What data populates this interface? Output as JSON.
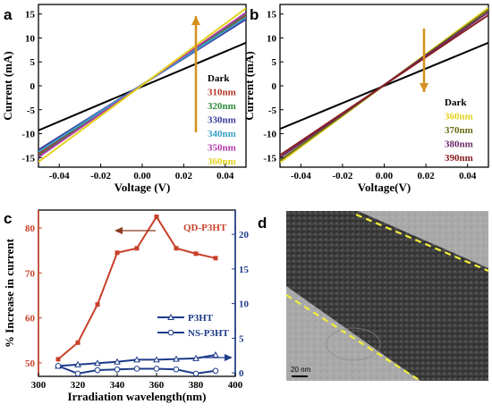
{
  "panel_letters": {
    "a": "a",
    "b": "b",
    "c": "c",
    "d": "d"
  },
  "colors": {
    "arrow": "#d4901c",
    "red": "#c8402a",
    "blue": "#1e3b8a",
    "dark": "#000000",
    "c310": "#b5332b",
    "c320": "#2e8b3a",
    "c330": "#3b3a9c",
    "c340": "#3aa0c8",
    "c350": "#b23aa8",
    "c360": "#e2d21c",
    "c370": "#6b6b16",
    "c380": "#6a2a6b",
    "c390": "#8a1e22"
  },
  "scale_bar_label": "20 nm",
  "chart_data": [
    {
      "type": "line",
      "panel": "a",
      "xlabel": "Voltage (V)",
      "ylabel": "Current (mA)",
      "xlim": [
        -0.05,
        0.05
      ],
      "ylim": [
        -17,
        17
      ],
      "xticks": [
        -0.04,
        -0.02,
        0.0,
        0.02,
        0.04
      ],
      "xtick_labels": [
        "-0.04",
        "-0.02",
        "0.00",
        "0.02",
        "0.04"
      ],
      "yticks": [
        -15,
        -10,
        -5,
        0,
        5,
        10,
        15
      ],
      "ytick_labels": [
        "-15",
        "-10",
        "-5",
        "0",
        "5",
        "10",
        "15"
      ],
      "legend_position": "bottom-right",
      "series": [
        {
          "name": "Dark",
          "color": "#000000",
          "x": [
            -0.05,
            0.05
          ],
          "y": [
            -9.3,
            9.0
          ]
        },
        {
          "name": "310nm",
          "color": "#b5332b",
          "x": [
            -0.05,
            0.05
          ],
          "y": [
            -14.2,
            14.6
          ]
        },
        {
          "name": "320nm",
          "color": "#2e8b3a",
          "x": [
            -0.05,
            0.05
          ],
          "y": [
            -14.6,
            15.0
          ]
        },
        {
          "name": "330nm",
          "color": "#3b3a9c",
          "x": [
            -0.05,
            0.05
          ],
          "y": [
            -13.4,
            13.9
          ]
        },
        {
          "name": "340nm",
          "color": "#3aa0c8",
          "x": [
            -0.05,
            0.05
          ],
          "y": [
            -13.8,
            14.3
          ]
        },
        {
          "name": "350nm",
          "color": "#b23aa8",
          "x": [
            -0.05,
            0.05
          ],
          "y": [
            -14.9,
            15.3
          ]
        },
        {
          "name": "360nm",
          "color": "#e2d21c",
          "x": [
            -0.05,
            0.05
          ],
          "y": [
            -15.9,
            16.2
          ]
        }
      ]
    },
    {
      "type": "line",
      "panel": "b",
      "xlabel": "Voltage(V)",
      "ylabel": "Current (mA)",
      "xlim": [
        -0.05,
        0.05
      ],
      "ylim": [
        -17,
        17
      ],
      "xticks": [
        -0.04,
        -0.02,
        0.0,
        0.02,
        0.04
      ],
      "xtick_labels": [
        "-0.04",
        "-0.02",
        "0.00",
        "0.02",
        "0.04"
      ],
      "yticks": [
        -15,
        -10,
        -5,
        0,
        5,
        10,
        15
      ],
      "ytick_labels": [
        "-15",
        "-10",
        "-5",
        "0",
        "5",
        "10",
        "15"
      ],
      "legend_position": "right",
      "series": [
        {
          "name": "Dark",
          "color": "#000000",
          "x": [
            -0.05,
            0.05
          ],
          "y": [
            -9.0,
            9.0
          ]
        },
        {
          "name": "360nm",
          "color": "#e2d21c",
          "x": [
            -0.05,
            0.05
          ],
          "y": [
            -16.0,
            16.3
          ]
        },
        {
          "name": "370nm",
          "color": "#6b6b16",
          "x": [
            -0.05,
            0.05
          ],
          "y": [
            -15.6,
            15.9
          ]
        },
        {
          "name": "380nm",
          "color": "#6a2a6b",
          "x": [
            -0.05,
            0.05
          ],
          "y": [
            -15.0,
            15.4
          ]
        },
        {
          "name": "390nm",
          "color": "#8a1e22",
          "x": [
            -0.05,
            0.05
          ],
          "y": [
            -14.5,
            14.8
          ]
        }
      ]
    },
    {
      "type": "line",
      "panel": "c",
      "xlabel": "Irradiation wavelength(nm)",
      "ylabel": "% Increase in current",
      "xlim": [
        300,
        400
      ],
      "ylim_left": [
        47,
        84
      ],
      "ylim_right": [
        -0.5,
        23.5
      ],
      "xticks": [
        300,
        320,
        340,
        360,
        380,
        400
      ],
      "xtick_labels": [
        "300",
        "320",
        "340",
        "360",
        "380",
        "400"
      ],
      "yticks_left": [
        50,
        60,
        70,
        80
      ],
      "ytick_labels_left": [
        "50",
        "60",
        "70",
        "80"
      ],
      "yticks_right": [
        0,
        5,
        10,
        15,
        20
      ],
      "ytick_labels_right": [
        "0",
        "5",
        "10",
        "15",
        "20"
      ],
      "series": [
        {
          "name": "QD-P3HT",
          "axis": "left",
          "marker": "square",
          "color": "#c8402a",
          "x": [
            310,
            320,
            330,
            340,
            350,
            360,
            370,
            380,
            390
          ],
          "y": [
            50.8,
            54.5,
            63.0,
            74.5,
            75.5,
            82.5,
            75.5,
            74.3,
            73.3
          ]
        },
        {
          "name": "P3HT",
          "axis": "right",
          "marker": "triangle",
          "color": "#1e3b8a",
          "x": [
            310,
            320,
            330,
            340,
            350,
            360,
            370,
            380,
            390
          ],
          "y": [
            1.0,
            1.2,
            1.4,
            1.6,
            1.9,
            1.9,
            2.0,
            2.1,
            2.6
          ]
        },
        {
          "name": "NS-P3HT",
          "axis": "right",
          "marker": "circle",
          "color": "#1e3b8a",
          "x": [
            310,
            320,
            330,
            340,
            350,
            360,
            370,
            380,
            390
          ],
          "y": [
            1.0,
            -0.1,
            0.4,
            0.5,
            0.6,
            0.6,
            0.5,
            -0.1,
            0.3
          ]
        }
      ]
    }
  ]
}
